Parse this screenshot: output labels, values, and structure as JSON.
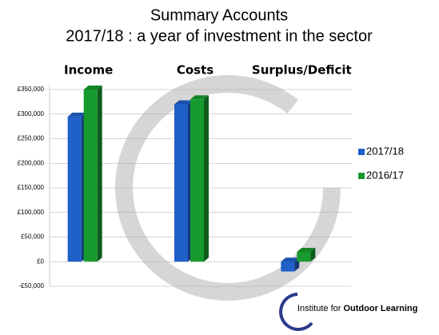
{
  "chart_data": {
    "type": "bar3d",
    "title": "Summary Accounts",
    "subtitle": "2017/18 : a year of investment in the sector",
    "categories": [
      "Income",
      "Costs",
      "Surplus/Deficit"
    ],
    "series": [
      {
        "name": "2017/18",
        "color": "#1f5fc8",
        "values": [
          295000,
          320000,
          -20000
        ]
      },
      {
        "name": "2016/17",
        "color": "#169a2e",
        "values": [
          350000,
          330000,
          20000
        ]
      }
    ],
    "ylim": [
      -50000,
      350000
    ],
    "yticks": [
      {
        "value": -50000,
        "label": "-£50,000"
      },
      {
        "value": 0,
        "label": "£0"
      },
      {
        "value": 50000,
        "label": "£50,000"
      },
      {
        "value": 100000,
        "label": "£100,000"
      },
      {
        "value": 150000,
        "label": "£150,000"
      },
      {
        "value": 200000,
        "label": "£200,000"
      },
      {
        "value": 250000,
        "label": "£250,000"
      },
      {
        "value": 300000,
        "label": "£300,000"
      },
      {
        "value": 350000,
        "label": "£350,000"
      }
    ],
    "grid": true,
    "legend": "right",
    "logo_text": [
      "Institute for",
      "Outdoor Learning"
    ]
  }
}
